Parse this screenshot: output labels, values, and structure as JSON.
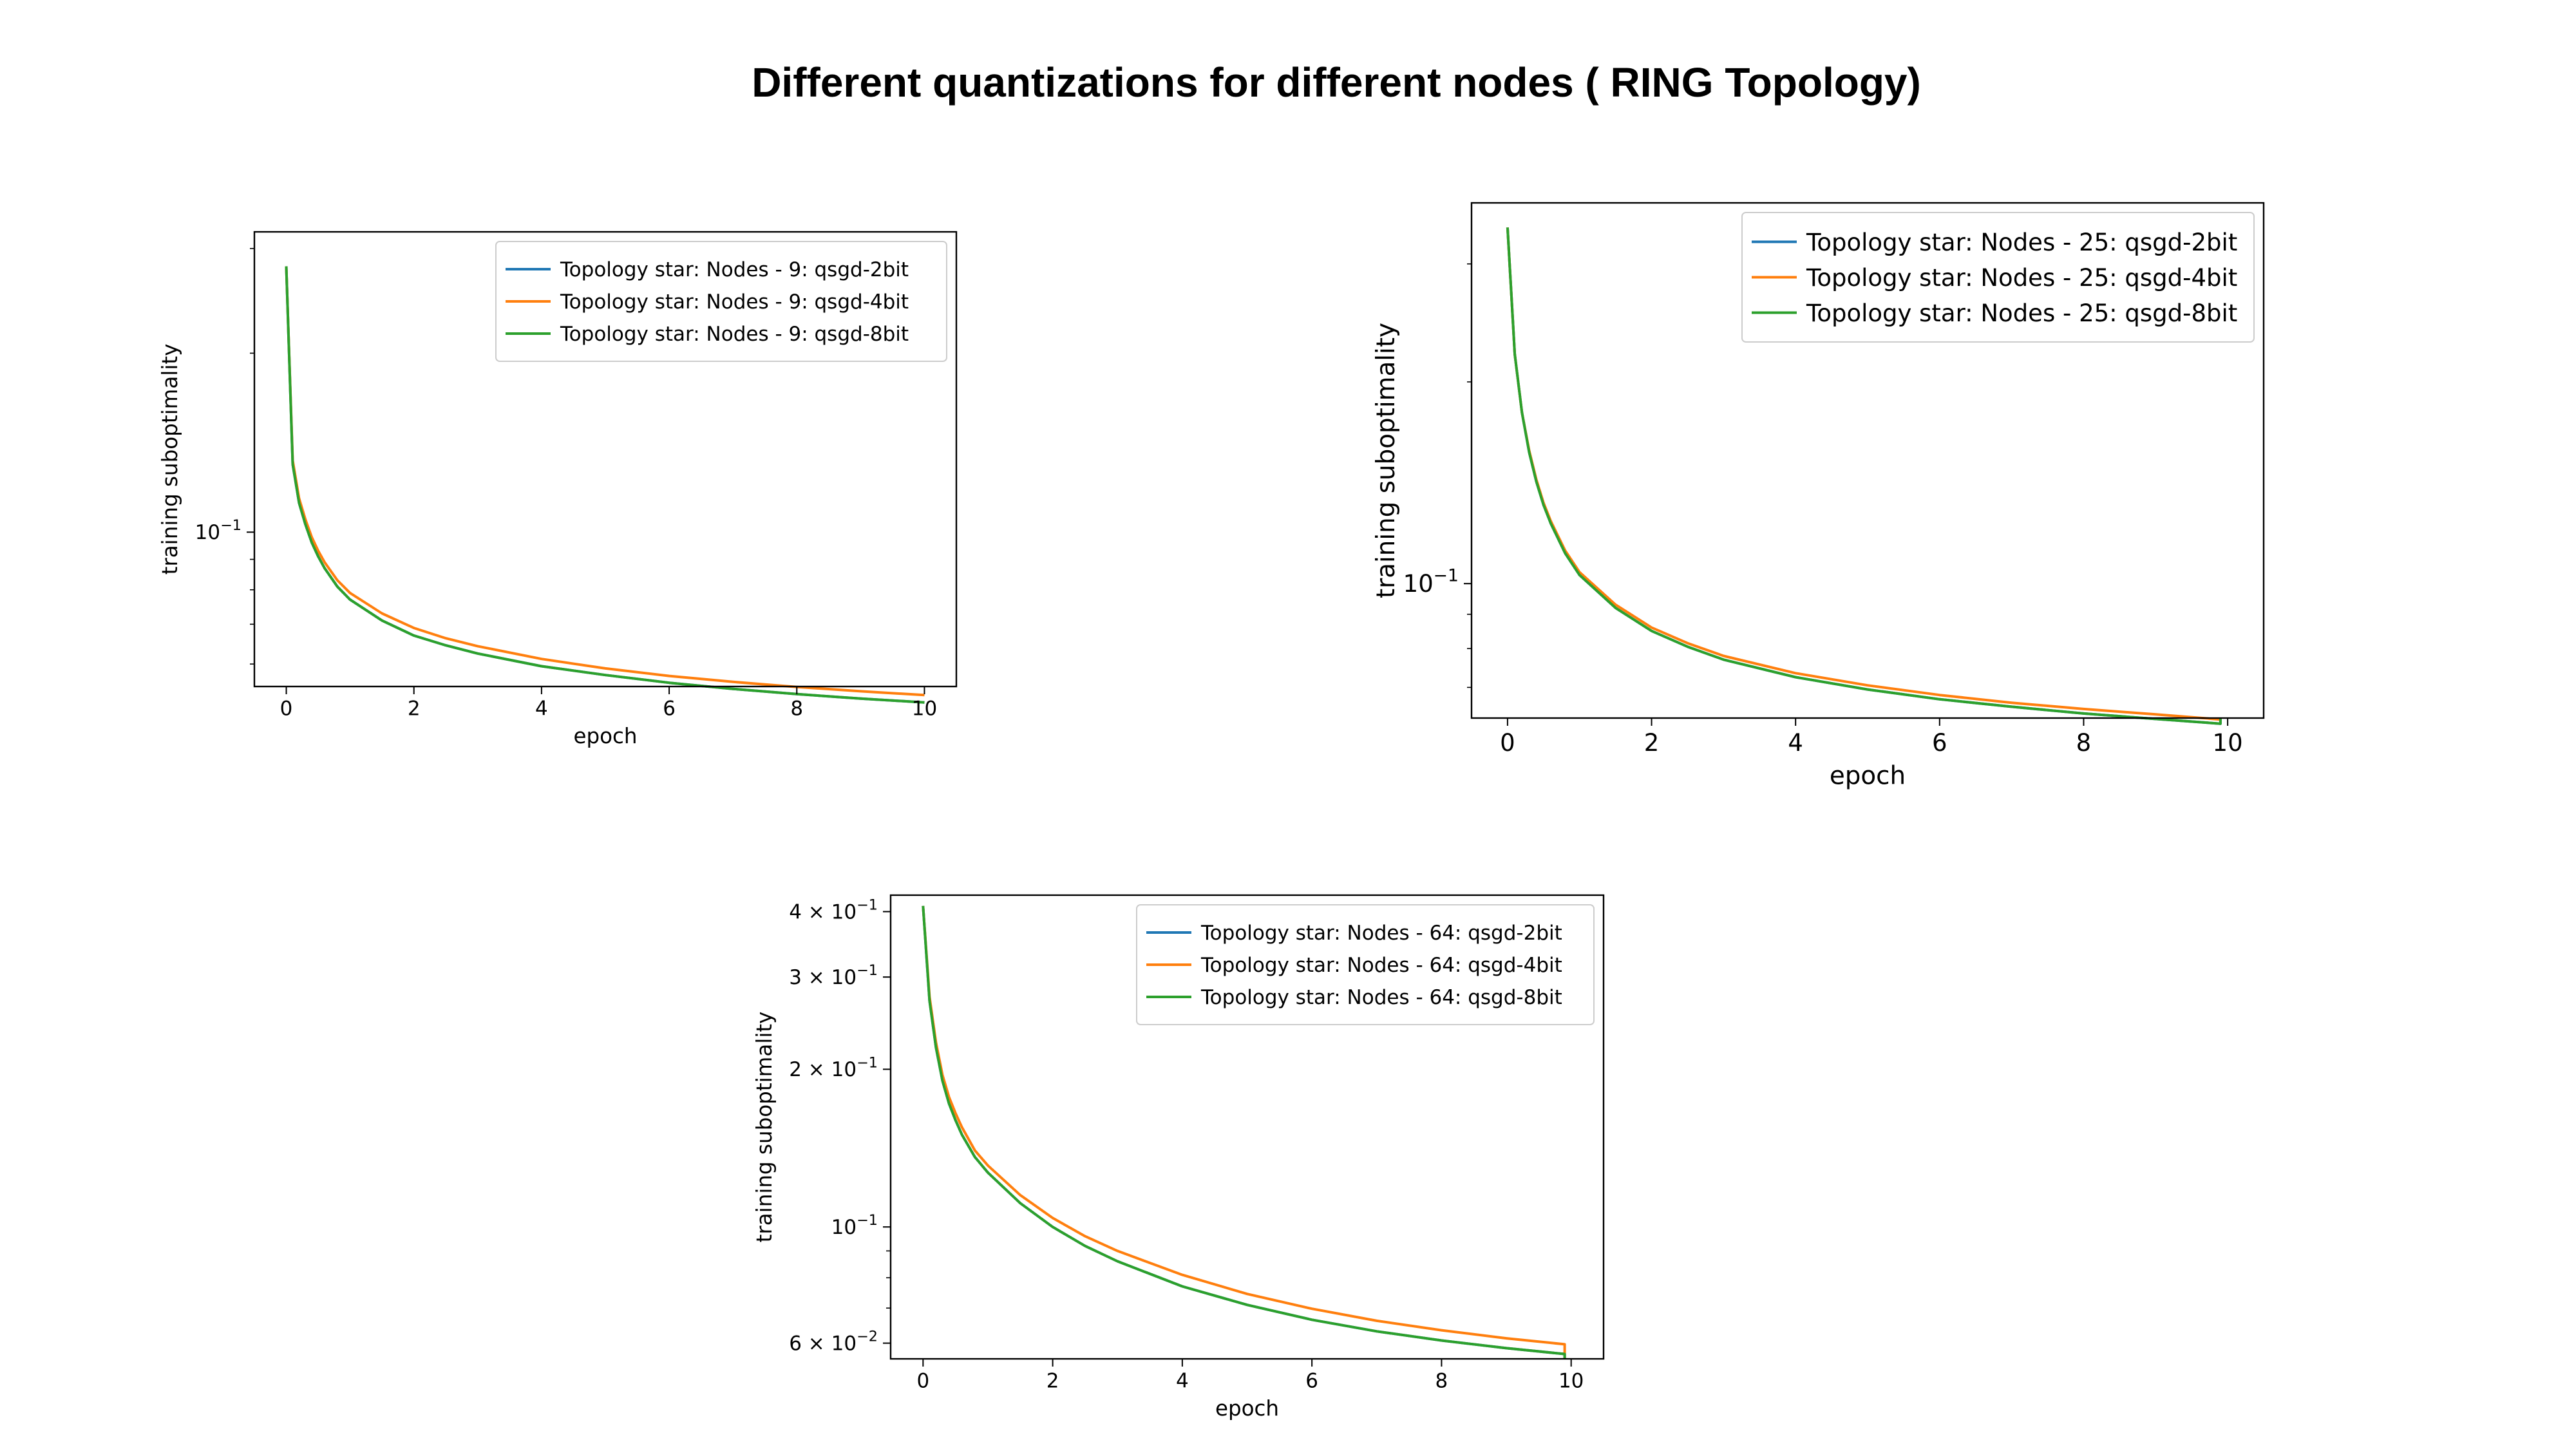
{
  "figure": {
    "title": "Different quantizations for different nodes ( RING Topology)"
  },
  "chart_data": [
    {
      "type": "line",
      "title": "",
      "xlabel": "epoch",
      "ylabel": "training suboptimality",
      "yscale": "log",
      "xlim": [
        -0.5,
        10.5
      ],
      "ylim": [
        0.055,
        0.32
      ],
      "xticks": [
        0,
        2,
        4,
        6,
        8,
        10
      ],
      "xtick_labels": [
        "0",
        "2",
        "4",
        "6",
        "8",
        "10"
      ],
      "yticks": [
        0.1
      ],
      "ytick_labels": [
        {
          "base": "10",
          "exp": "−1",
          "coef": ""
        }
      ],
      "legend_position": "upper right",
      "grid": false,
      "x": [
        0,
        0.1,
        0.2,
        0.3,
        0.4,
        0.5,
        0.6,
        0.8,
        1,
        1.5,
        2,
        2.5,
        3,
        4,
        5,
        6,
        7,
        8,
        9,
        10
      ],
      "series": [
        {
          "name": "Topology star: Nodes - 9: qsgd-2bit",
          "color": "#1f77b4",
          "values": [
            0.28,
            0.13,
            0.112,
            0.103,
            0.096,
            0.091,
            0.087,
            0.081,
            0.077,
            0.071,
            0.067,
            0.0645,
            0.0625,
            0.0595,
            0.0575,
            0.0558,
            0.0545,
            0.0534,
            0.0525,
            0.0517
          ]
        },
        {
          "name": "Topology star: Nodes - 9: qsgd-4bit",
          "color": "#ff7f0e",
          "values": [
            0.28,
            0.132,
            0.114,
            0.105,
            0.098,
            0.093,
            0.089,
            0.083,
            0.079,
            0.073,
            0.069,
            0.0663,
            0.0643,
            0.0612,
            0.059,
            0.0573,
            0.056,
            0.0549,
            0.054,
            0.0532
          ]
        },
        {
          "name": "Topology star: Nodes - 9: qsgd-8bit",
          "color": "#2ca02c",
          "values": [
            0.28,
            0.13,
            0.112,
            0.103,
            0.096,
            0.091,
            0.087,
            0.081,
            0.077,
            0.071,
            0.067,
            0.0645,
            0.0625,
            0.0595,
            0.0575,
            0.0558,
            0.0545,
            0.0534,
            0.0525,
            0.0517
          ]
        }
      ]
    },
    {
      "type": "line",
      "title": "",
      "xlabel": "epoch",
      "ylabel": "training suboptimality",
      "yscale": "log",
      "xlim": [
        -0.5,
        10.5
      ],
      "ylim": [
        0.063,
        0.37
      ],
      "xticks": [
        0,
        2,
        4,
        6,
        8,
        10
      ],
      "xtick_labels": [
        "0",
        "2",
        "4",
        "6",
        "8",
        "10"
      ],
      "yticks": [
        0.1
      ],
      "ytick_labels": [
        {
          "base": "10",
          "exp": "−1",
          "coef": ""
        }
      ],
      "legend_position": "upper right",
      "grid": false,
      "x": [
        0,
        0.1,
        0.2,
        0.3,
        0.4,
        0.5,
        0.6,
        0.8,
        1,
        1.5,
        2,
        2.5,
        3,
        4,
        5,
        6,
        7,
        8,
        9,
        9.9
      ],
      "series": [
        {
          "name": "Topology star: Nodes - 25: qsgd-2bit",
          "color": "#1f77b4",
          "values": [
            0.34,
            0.22,
            0.18,
            0.157,
            0.142,
            0.131,
            0.123,
            0.111,
            0.103,
            0.092,
            0.085,
            0.0805,
            0.077,
            0.0725,
            0.0695,
            0.0672,
            0.0655,
            0.064,
            0.0628,
            0.0618
          ]
        },
        {
          "name": "Topology star: Nodes - 25: qsgd-4bit",
          "color": "#ff7f0e",
          "values": [
            0.34,
            0.22,
            0.18,
            0.158,
            0.143,
            0.132,
            0.124,
            0.112,
            0.104,
            0.093,
            0.086,
            0.0815,
            0.078,
            0.0735,
            0.0705,
            0.0682,
            0.0664,
            0.065,
            0.0638,
            0.0627
          ]
        },
        {
          "name": "Topology star: Nodes - 25: qsgd-8bit",
          "color": "#2ca02c",
          "values": [
            0.34,
            0.22,
            0.18,
            0.157,
            0.142,
            0.131,
            0.123,
            0.111,
            0.103,
            0.092,
            0.085,
            0.0805,
            0.077,
            0.0725,
            0.0695,
            0.0672,
            0.0655,
            0.064,
            0.0628,
            0.0618
          ]
        }
      ]
    },
    {
      "type": "line",
      "title": "",
      "xlabel": "epoch",
      "ylabel": "training suboptimality",
      "yscale": "log",
      "xlim": [
        -0.5,
        10.5
      ],
      "ylim": [
        0.056,
        0.43
      ],
      "xticks": [
        0,
        2,
        4,
        6,
        8,
        10
      ],
      "xtick_labels": [
        "0",
        "2",
        "4",
        "6",
        "8",
        "10"
      ],
      "yticks": [
        0.4,
        0.3,
        0.2,
        0.1,
        0.06
      ],
      "ytick_labels": [
        {
          "coef": "4 × ",
          "base": "10",
          "exp": "−1"
        },
        {
          "coef": "3 × ",
          "base": "10",
          "exp": "−1"
        },
        {
          "coef": "2 × ",
          "base": "10",
          "exp": "−1"
        },
        {
          "coef": "",
          "base": "10",
          "exp": "−1"
        },
        {
          "coef": "6 × ",
          "base": "10",
          "exp": "−2"
        }
      ],
      "legend_position": "upper right",
      "grid": false,
      "x": [
        0,
        0.1,
        0.2,
        0.3,
        0.4,
        0.5,
        0.6,
        0.8,
        1,
        1.5,
        2,
        2.5,
        3,
        4,
        5,
        6,
        7,
        8,
        9,
        9.9
      ],
      "series": [
        {
          "name": "Topology star: Nodes - 64: qsgd-2bit",
          "color": "#1f77b4",
          "values": [
            0.41,
            0.27,
            0.22,
            0.19,
            0.172,
            0.16,
            0.15,
            0.136,
            0.127,
            0.111,
            0.1,
            0.092,
            0.086,
            0.077,
            0.071,
            0.0665,
            0.0632,
            0.0607,
            0.0587,
            0.0572
          ]
        },
        {
          "name": "Topology star: Nodes - 64: qsgd-4bit",
          "color": "#ff7f0e",
          "values": [
            0.41,
            0.275,
            0.225,
            0.195,
            0.177,
            0.165,
            0.155,
            0.14,
            0.131,
            0.115,
            0.104,
            0.096,
            0.09,
            0.081,
            0.0745,
            0.0698,
            0.0662,
            0.0635,
            0.0613,
            0.0597
          ]
        },
        {
          "name": "Topology star: Nodes - 64: qsgd-8bit",
          "color": "#2ca02c",
          "values": [
            0.41,
            0.27,
            0.22,
            0.19,
            0.172,
            0.16,
            0.15,
            0.136,
            0.127,
            0.111,
            0.1,
            0.092,
            0.086,
            0.077,
            0.071,
            0.0665,
            0.0632,
            0.0607,
            0.0587,
            0.0572
          ]
        }
      ]
    }
  ]
}
